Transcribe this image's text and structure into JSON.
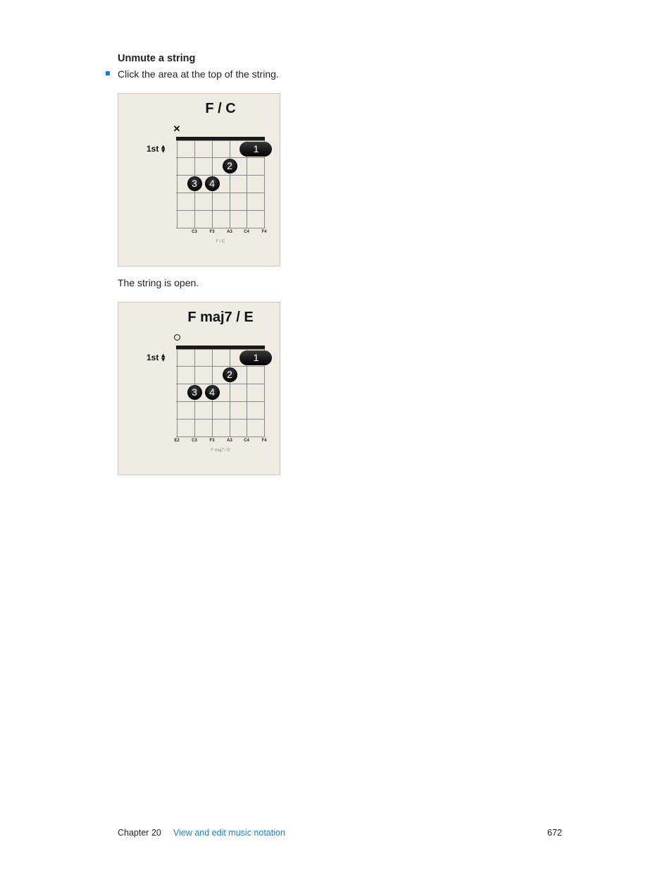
{
  "section": {
    "heading": "Unmute a string",
    "bullet": "Click the area at the top of the string.",
    "caption": "The string is open."
  },
  "diagrams": [
    {
      "title": "F / C",
      "fret_position": "1st",
      "top_mark": "x-mute-icon",
      "top_mark_glyph": "✕",
      "strings": [
        "",
        "C3",
        "F3",
        "A3",
        "C4",
        "F4"
      ],
      "chord_name": "F / C",
      "fingers": [
        {
          "label": "1",
          "fret": 1,
          "type": "barre"
        },
        {
          "label": "2",
          "fret": 2,
          "string": 4
        },
        {
          "label": "3",
          "fret": 3,
          "string": 2
        },
        {
          "label": "4",
          "fret": 3,
          "string": 3
        }
      ]
    },
    {
      "title": "F maj7 / E",
      "fret_position": "1st",
      "top_mark": "open-string-icon",
      "top_mark_glyph": "",
      "strings": [
        "E2",
        "C3",
        "F3",
        "A3",
        "C4",
        "F4"
      ],
      "chord_name": "F maj7 / E",
      "fingers": [
        {
          "label": "1",
          "fret": 1,
          "type": "barre"
        },
        {
          "label": "2",
          "fret": 2,
          "string": 4
        },
        {
          "label": "3",
          "fret": 3,
          "string": 2
        },
        {
          "label": "4",
          "fret": 3,
          "string": 3
        }
      ]
    }
  ],
  "footer": {
    "chapter": "Chapter  20",
    "link": "View and edit music notation",
    "page": "672"
  },
  "colors": {
    "accent": "#1a7fd0",
    "panel": "#efebe4"
  }
}
